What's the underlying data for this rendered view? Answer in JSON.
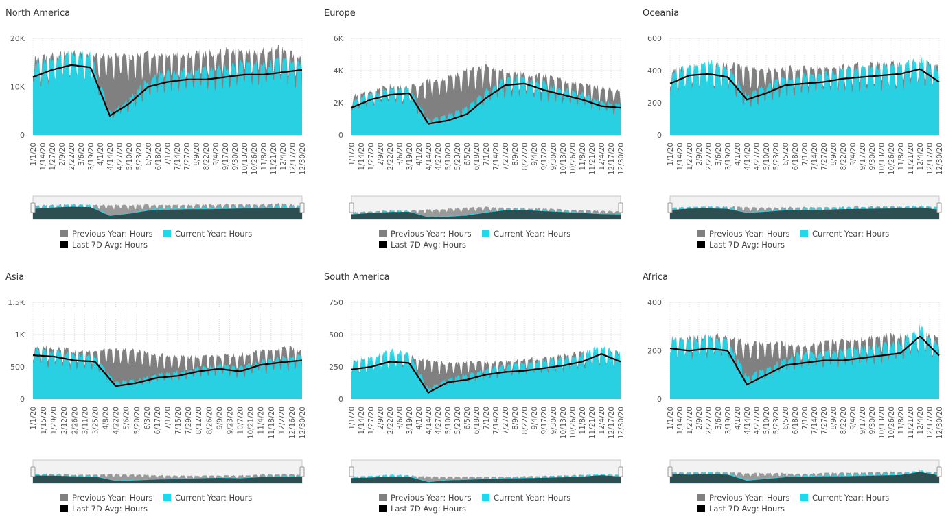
{
  "legend": {
    "prev_label": "Previous Year: Hours",
    "curr_label": "Current Year: Hours",
    "avg_label": "Last 7D Avg: Hours",
    "prev_color": "#808080",
    "curr_color": "#1fd8ec",
    "avg_color": "#000000"
  },
  "chart_data": [
    {
      "type": "area",
      "title": "North America",
      "ylim": [
        0,
        20000
      ],
      "yticks": [
        0,
        10000,
        20000
      ],
      "ytick_labels": [
        "0",
        "10K",
        "20K"
      ],
      "xtick_labels": [
        "1/1/20",
        "1/14/20",
        "1/27/20",
        "2/9/20",
        "2/22/20",
        "3/6/20",
        "3/19/20",
        "4/1/20",
        "4/14/20",
        "4/27/20",
        "5/10/20",
        "5/23/20",
        "6/5/20",
        "6/18/20",
        "7/1/20",
        "7/14/20",
        "7/27/20",
        "8/9/20",
        "8/22/20",
        "9/4/20",
        "9/17/20",
        "9/30/20",
        "10/13/20",
        "10/26/20",
        "11/8/20",
        "11/21/20",
        "12/4/20",
        "12/17/20",
        "12/30/20"
      ],
      "series": [
        {
          "name": "Previous Year: Hours",
          "x": [
            "1/1/20",
            "1/27/20",
            "2/22/20",
            "3/19/20",
            "4/14/20",
            "5/10/20",
            "6/5/20",
            "7/1/20",
            "7/27/20",
            "8/22/20",
            "9/17/20",
            "10/13/20",
            "11/8/20",
            "12/4/20",
            "12/30/20"
          ],
          "values": [
            15000,
            15500,
            16000,
            15500,
            15500,
            15500,
            16000,
            16000,
            16000,
            16000,
            16500,
            16500,
            16500,
            17000,
            15000
          ]
        },
        {
          "name": "Current Year: Hours",
          "x": [
            "1/1/20",
            "1/27/20",
            "2/22/20",
            "3/19/20",
            "4/14/20",
            "5/10/20",
            "6/5/20",
            "7/1/20",
            "7/27/20",
            "8/22/20",
            "9/17/20",
            "10/13/20",
            "11/8/20",
            "12/4/20",
            "12/30/20"
          ],
          "values": [
            13500,
            15000,
            16000,
            15500,
            4500,
            7000,
            11000,
            12500,
            12500,
            13000,
            13000,
            14000,
            14000,
            14500,
            14000
          ]
        },
        {
          "name": "Last 7D Avg: Hours",
          "x": [
            "1/1/20",
            "1/27/20",
            "2/22/20",
            "3/19/20",
            "4/14/20",
            "5/10/20",
            "6/5/20",
            "7/1/20",
            "7/27/20",
            "8/22/20",
            "9/17/20",
            "10/13/20",
            "11/8/20",
            "12/4/20",
            "12/30/20"
          ],
          "values": [
            12000,
            13500,
            14500,
            14000,
            4000,
            6500,
            10000,
            11000,
            11500,
            11500,
            12000,
            12500,
            12500,
            13000,
            13500
          ]
        }
      ]
    },
    {
      "type": "area",
      "title": "Europe",
      "ylim": [
        0,
        6000
      ],
      "yticks": [
        0,
        2000,
        4000,
        6000
      ],
      "ytick_labels": [
        "0",
        "2K",
        "4K",
        "6K"
      ],
      "xtick_labels": [
        "1/1/20",
        "1/14/20",
        "1/27/20",
        "2/9/20",
        "2/22/20",
        "3/6/20",
        "3/19/20",
        "4/1/20",
        "4/14/20",
        "4/27/20",
        "5/10/20",
        "5/23/20",
        "6/5/20",
        "6/18/20",
        "7/1/20",
        "7/14/20",
        "7/27/20",
        "8/9/20",
        "8/22/20",
        "9/4/20",
        "9/17/20",
        "9/30/20",
        "10/13/20",
        "10/26/20",
        "11/8/20",
        "11/21/20",
        "12/4/20",
        "12/17/20",
        "12/30/20"
      ],
      "series": [
        {
          "name": "Previous Year: Hours",
          "x": [
            "1/1/20",
            "1/27/20",
            "2/22/20",
            "3/19/20",
            "4/14/20",
            "5/10/20",
            "6/5/20",
            "7/1/20",
            "7/27/20",
            "8/22/20",
            "9/17/20",
            "10/13/20",
            "11/8/20",
            "12/4/20",
            "12/30/20"
          ],
          "values": [
            2300,
            2600,
            2900,
            2800,
            3200,
            3400,
            3800,
            4000,
            3700,
            3600,
            3500,
            3200,
            3000,
            2800,
            2600
          ]
        },
        {
          "name": "Current Year: Hours",
          "x": [
            "1/1/20",
            "1/27/20",
            "2/22/20",
            "3/19/20",
            "4/14/20",
            "5/10/20",
            "6/5/20",
            "7/1/20",
            "7/27/20",
            "8/22/20",
            "9/17/20",
            "10/13/20",
            "11/8/20",
            "12/4/20",
            "12/30/20"
          ],
          "values": [
            2000,
            2400,
            2700,
            2800,
            900,
            1200,
            1600,
            2600,
            3300,
            3300,
            3000,
            2700,
            2400,
            2000,
            1800
          ]
        },
        {
          "name": "Last 7D Avg: Hours",
          "x": [
            "1/1/20",
            "1/27/20",
            "2/22/20",
            "3/19/20",
            "4/14/20",
            "5/10/20",
            "6/5/20",
            "7/1/20",
            "7/27/20",
            "8/22/20",
            "9/17/20",
            "10/13/20",
            "11/8/20",
            "12/4/20",
            "12/30/20"
          ],
          "values": [
            1700,
            2200,
            2500,
            2600,
            700,
            900,
            1300,
            2300,
            3100,
            3200,
            2800,
            2500,
            2200,
            1800,
            1700
          ]
        }
      ]
    },
    {
      "type": "area",
      "title": "Oceania",
      "ylim": [
        0,
        600
      ],
      "yticks": [
        0,
        200,
        400,
        600
      ],
      "ytick_labels": [
        "0",
        "200",
        "400",
        "600"
      ],
      "xtick_labels": [
        "1/1/20",
        "1/14/20",
        "1/27/20",
        "2/9/20",
        "2/22/20",
        "3/6/20",
        "3/19/20",
        "4/1/20",
        "4/14/20",
        "4/27/20",
        "5/10/20",
        "5/23/20",
        "6/5/20",
        "6/18/20",
        "7/1/20",
        "7/14/20",
        "7/27/20",
        "8/9/20",
        "8/22/20",
        "9/4/20",
        "9/17/20",
        "9/30/20",
        "10/13/20",
        "10/26/20",
        "11/8/20",
        "11/21/20",
        "12/4/20",
        "12/17/20",
        "12/30/20"
      ],
      "series": [
        {
          "name": "Previous Year: Hours",
          "x": [
            "1/1/20",
            "1/27/20",
            "2/22/20",
            "3/19/20",
            "4/14/20",
            "5/10/20",
            "6/5/20",
            "7/1/20",
            "7/27/20",
            "8/22/20",
            "9/17/20",
            "10/13/20",
            "11/8/20",
            "12/4/20",
            "12/30/20"
          ],
          "values": [
            380,
            400,
            410,
            410,
            400,
            390,
            390,
            400,
            400,
            400,
            410,
            420,
            420,
            430,
            400
          ]
        },
        {
          "name": "Current Year: Hours",
          "x": [
            "1/1/20",
            "1/27/20",
            "2/22/20",
            "3/19/20",
            "4/14/20",
            "5/10/20",
            "6/5/20",
            "7/1/20",
            "7/27/20",
            "8/22/20",
            "9/17/20",
            "10/13/20",
            "11/8/20",
            "12/4/20",
            "12/30/20"
          ],
          "values": [
            360,
            410,
            420,
            400,
            240,
            280,
            340,
            350,
            360,
            380,
            390,
            400,
            410,
            440,
            380
          ]
        },
        {
          "name": "Last 7D Avg: Hours",
          "x": [
            "1/1/20",
            "1/27/20",
            "2/22/20",
            "3/19/20",
            "4/14/20",
            "5/10/20",
            "6/5/20",
            "7/1/20",
            "7/27/20",
            "8/22/20",
            "9/17/20",
            "10/13/20",
            "11/8/20",
            "12/4/20",
            "12/30/20"
          ],
          "values": [
            320,
            370,
            380,
            360,
            220,
            260,
            310,
            320,
            330,
            350,
            360,
            370,
            380,
            410,
            330
          ]
        }
      ]
    },
    {
      "type": "area",
      "title": "Asia",
      "ylim": [
        0,
        1500
      ],
      "yticks": [
        0,
        500,
        1000,
        1500
      ],
      "ytick_labels": [
        "0",
        "500",
        "1K",
        "1.5K"
      ],
      "xtick_labels": [
        "1/1/20",
        "1/15/20",
        "1/29/20",
        "2/12/20",
        "2/26/20",
        "3/11/20",
        "3/25/20",
        "4/8/20",
        "4/22/20",
        "5/6/20",
        "5/20/20",
        "6/3/20",
        "6/17/20",
        "7/1/20",
        "7/15/20",
        "7/29/20",
        "8/12/20",
        "8/26/20",
        "9/9/20",
        "9/23/20",
        "10/7/20",
        "10/21/20",
        "11/4/20",
        "11/18/20",
        "12/2/20",
        "12/16/20",
        "12/30/20"
      ],
      "series": [
        {
          "name": "Previous Year: Hours",
          "x": [
            "1/1/20",
            "1/29/20",
            "2/26/20",
            "3/25/20",
            "4/22/20",
            "5/20/20",
            "6/17/20",
            "7/15/20",
            "8/12/20",
            "9/9/20",
            "10/7/20",
            "11/4/20",
            "12/2/20",
            "12/30/20"
          ],
          "values": [
            780,
            760,
            700,
            700,
            750,
            700,
            650,
            620,
            620,
            640,
            650,
            700,
            760,
            720
          ]
        },
        {
          "name": "Current Year: Hours",
          "x": [
            "1/1/20",
            "1/29/20",
            "2/26/20",
            "3/25/20",
            "4/22/20",
            "5/20/20",
            "6/17/20",
            "7/15/20",
            "8/12/20",
            "9/9/20",
            "10/7/20",
            "11/4/20",
            "12/2/20",
            "12/30/20"
          ],
          "values": [
            720,
            700,
            650,
            620,
            260,
            280,
            360,
            400,
            460,
            500,
            460,
            560,
            600,
            640
          ]
        },
        {
          "name": "Last 7D Avg: Hours",
          "x": [
            "1/1/20",
            "1/29/20",
            "2/26/20",
            "3/25/20",
            "4/22/20",
            "5/20/20",
            "6/17/20",
            "7/15/20",
            "8/12/20",
            "9/9/20",
            "10/7/20",
            "11/4/20",
            "12/2/20",
            "12/30/20"
          ],
          "values": [
            680,
            660,
            600,
            580,
            200,
            250,
            330,
            360,
            430,
            470,
            430,
            530,
            570,
            600
          ]
        }
      ]
    },
    {
      "type": "area",
      "title": "South America",
      "ylim": [
        0,
        750
      ],
      "yticks": [
        0,
        250,
        500,
        750
      ],
      "ytick_labels": [
        "0",
        "250",
        "500",
        "750"
      ],
      "xtick_labels": [
        "1/1/20",
        "1/14/20",
        "1/27/20",
        "2/9/20",
        "2/22/20",
        "3/6/20",
        "3/19/20",
        "4/1/20",
        "4/14/20",
        "4/27/20",
        "5/10/20",
        "5/23/20",
        "6/5/20",
        "6/18/20",
        "7/1/20",
        "7/14/20",
        "7/27/20",
        "8/9/20",
        "8/22/20",
        "9/4/20",
        "9/17/20",
        "9/30/20",
        "10/13/20",
        "10/26/20",
        "11/8/20",
        "11/21/20",
        "12/4/20",
        "12/17/20",
        "12/30/20"
      ],
      "series": [
        {
          "name": "Previous Year: Hours",
          "x": [
            "1/1/20",
            "1/27/20",
            "2/22/20",
            "3/19/20",
            "4/14/20",
            "5/10/20",
            "6/5/20",
            "7/1/20",
            "7/27/20",
            "8/22/20",
            "9/17/20",
            "10/13/20",
            "11/8/20",
            "12/4/20",
            "12/30/20"
          ],
          "values": [
            270,
            290,
            320,
            320,
            280,
            260,
            270,
            270,
            280,
            290,
            300,
            320,
            340,
            360,
            340
          ]
        },
        {
          "name": "Current Year: Hours",
          "x": [
            "1/1/20",
            "1/27/20",
            "2/22/20",
            "3/19/20",
            "4/14/20",
            "5/10/20",
            "6/5/20",
            "7/1/20",
            "7/27/20",
            "8/22/20",
            "9/17/20",
            "10/13/20",
            "11/8/20",
            "12/4/20",
            "12/30/20"
          ],
          "values": [
            280,
            300,
            360,
            330,
            80,
            150,
            180,
            220,
            240,
            260,
            280,
            300,
            330,
            380,
            330
          ]
        },
        {
          "name": "Last 7D Avg: Hours",
          "x": [
            "1/1/20",
            "1/27/20",
            "2/22/20",
            "3/19/20",
            "4/14/20",
            "5/10/20",
            "6/5/20",
            "7/1/20",
            "7/27/20",
            "8/22/20",
            "9/17/20",
            "10/13/20",
            "11/8/20",
            "12/4/20",
            "12/30/20"
          ],
          "values": [
            230,
            250,
            290,
            280,
            50,
            130,
            150,
            190,
            210,
            220,
            240,
            260,
            290,
            350,
            290
          ]
        }
      ]
    },
    {
      "type": "area",
      "title": "Africa",
      "ylim": [
        0,
        400
      ],
      "yticks": [
        0,
        200,
        400
      ],
      "ytick_labels": [
        "0",
        "200",
        "400"
      ],
      "xtick_labels": [
        "1/1/20",
        "1/14/20",
        "1/27/20",
        "2/9/20",
        "2/22/20",
        "3/6/20",
        "3/19/20",
        "4/1/20",
        "4/14/20",
        "4/27/20",
        "5/10/20",
        "5/23/20",
        "6/5/20",
        "6/18/20",
        "7/1/20",
        "7/14/20",
        "7/27/20",
        "8/9/20",
        "8/22/20",
        "9/4/20",
        "9/17/20",
        "9/30/20",
        "10/13/20",
        "10/26/20",
        "11/8/20",
        "11/21/20",
        "12/4/20",
        "12/17/20",
        "12/30/20"
      ],
      "series": [
        {
          "name": "Previous Year: Hours",
          "x": [
            "1/1/20",
            "1/27/20",
            "2/22/20",
            "3/19/20",
            "4/14/20",
            "5/10/20",
            "6/5/20",
            "7/1/20",
            "7/27/20",
            "8/22/20",
            "9/17/20",
            "10/13/20",
            "11/8/20",
            "12/4/20",
            "12/30/20"
          ],
          "values": [
            230,
            240,
            250,
            240,
            220,
            220,
            220,
            210,
            220,
            230,
            240,
            250,
            250,
            260,
            240
          ]
        },
        {
          "name": "Current Year: Hours",
          "x": [
            "1/1/20",
            "1/27/20",
            "2/22/20",
            "3/19/20",
            "4/14/20",
            "5/10/20",
            "6/5/20",
            "7/1/20",
            "7/27/20",
            "8/22/20",
            "9/17/20",
            "10/13/20",
            "11/8/20",
            "12/4/20",
            "12/30/20"
          ],
          "values": [
            240,
            230,
            240,
            230,
            90,
            120,
            160,
            180,
            180,
            190,
            200,
            210,
            220,
            280,
            200
          ]
        },
        {
          "name": "Last 7D Avg: Hours",
          "x": [
            "1/1/20",
            "1/27/20",
            "2/22/20",
            "3/19/20",
            "4/14/20",
            "5/10/20",
            "6/5/20",
            "7/1/20",
            "7/27/20",
            "8/22/20",
            "9/17/20",
            "10/13/20",
            "11/8/20",
            "12/4/20",
            "12/30/20"
          ],
          "values": [
            210,
            200,
            210,
            200,
            60,
            100,
            140,
            150,
            160,
            160,
            170,
            180,
            190,
            260,
            180
          ]
        }
      ]
    }
  ]
}
